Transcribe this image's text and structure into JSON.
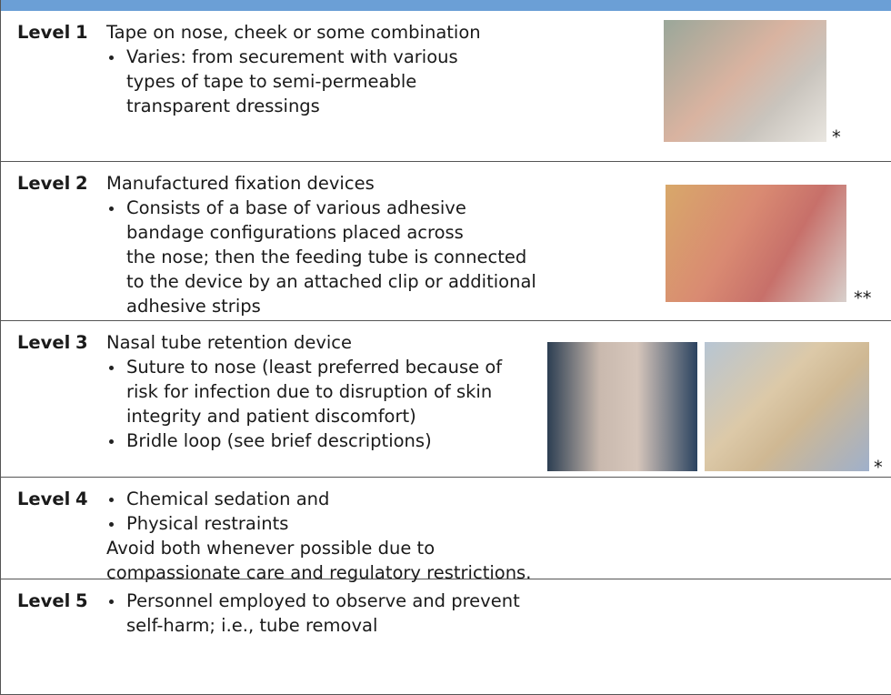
{
  "rows": [
    {
      "level": "Level",
      "number": "1",
      "title": "Tape on nose, cheek or some combination",
      "bullets": [
        [
          "Varies: from securement with various",
          "types of tape to semi-permeable",
          "transparent dressings"
        ]
      ],
      "note": [],
      "mark": "*"
    },
    {
      "level": "Level",
      "number": "2",
      "title": "Manufactured fixation devices",
      "bullets": [
        [
          "Consists of a base of various adhesive",
          "bandage configurations placed across",
          "the nose; then the feeding tube is connected",
          "to the device by an attached clip or additional",
          "adhesive strips"
        ]
      ],
      "note": [],
      "mark": "**"
    },
    {
      "level": "Level",
      "number": "3",
      "title": "Nasal tube retention device",
      "bullets": [
        [
          "Suture to nose (least preferred because of",
          "risk for infection due to disruption of skin",
          "integrity and patient discomfort)"
        ],
        [
          "Bridle loop (see brief descriptions)"
        ]
      ],
      "note": [],
      "mark": "*"
    },
    {
      "level": "Level",
      "number": "4",
      "title": null,
      "bullets": [
        [
          "Chemical sedation and"
        ],
        [
          "Physical restraints"
        ]
      ],
      "note": [
        "Avoid both whenever possible due to",
        "compassionate care and regulatory restrictions."
      ],
      "mark": null
    },
    {
      "level": "Level",
      "number": "5",
      "title": null,
      "bullets": [
        [
          "Personnel employed to observe and prevent",
          "self-harm; i.e., tube removal"
        ]
      ],
      "note": [],
      "mark": null
    }
  ]
}
